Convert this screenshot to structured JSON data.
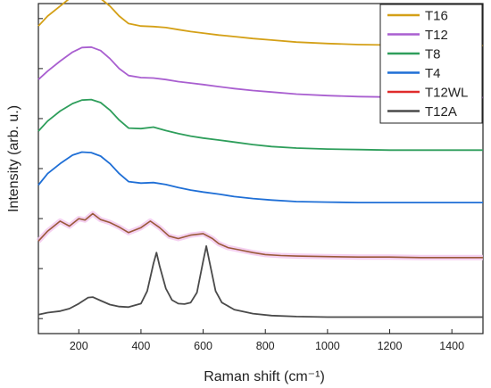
{
  "chart_data": {
    "type": "line",
    "xlabel": "Raman shift (cm⁻¹)",
    "ylabel": "Intensity (arb. u.)",
    "xlim": [
      70,
      1500
    ],
    "x_ticks": [
      200,
      400,
      600,
      800,
      1000,
      1200,
      1400
    ],
    "y_ticks": [
      0,
      1,
      2,
      3,
      4,
      5,
      6
    ],
    "ylim": [
      -0.3,
      6.3
    ],
    "y_scale": "arbitrary (stacked offsets)",
    "grid": false,
    "legend_position": "top-right",
    "series": [
      {
        "name": "T16",
        "color": "#D4A017",
        "x": [
          70,
          100,
          140,
          180,
          210,
          240,
          270,
          300,
          330,
          360,
          400,
          440,
          480,
          520,
          560,
          600,
          650,
          700,
          760,
          820,
          900,
          1000,
          1100,
          1200,
          1300,
          1400,
          1500
        ],
        "y": [
          5.85,
          6.05,
          6.25,
          6.45,
          6.5,
          6.48,
          6.4,
          6.25,
          6.05,
          5.9,
          5.85,
          5.84,
          5.82,
          5.78,
          5.74,
          5.71,
          5.67,
          5.64,
          5.6,
          5.57,
          5.53,
          5.5,
          5.48,
          5.47,
          5.46,
          5.46,
          5.46
        ]
      },
      {
        "name": "T12",
        "color": "#A95FD0",
        "x": [
          70,
          100,
          140,
          180,
          210,
          240,
          270,
          300,
          330,
          360,
          400,
          440,
          480,
          520,
          560,
          600,
          650,
          700,
          760,
          820,
          900,
          1000,
          1100,
          1200,
          1300,
          1400,
          1500
        ],
        "y": [
          4.78,
          4.95,
          5.15,
          5.33,
          5.42,
          5.43,
          5.36,
          5.2,
          5.0,
          4.86,
          4.82,
          4.81,
          4.78,
          4.74,
          4.71,
          4.68,
          4.64,
          4.6,
          4.56,
          4.53,
          4.49,
          4.46,
          4.44,
          4.43,
          4.42,
          4.42,
          4.42
        ]
      },
      {
        "name": "T8",
        "color": "#2E9E5B",
        "x": [
          70,
          100,
          140,
          180,
          210,
          240,
          270,
          300,
          330,
          360,
          400,
          440,
          480,
          520,
          560,
          600,
          650,
          700,
          760,
          820,
          900,
          1000,
          1100,
          1200,
          1300,
          1400,
          1500
        ],
        "y": [
          3.75,
          3.95,
          4.15,
          4.3,
          4.37,
          4.38,
          4.32,
          4.17,
          3.97,
          3.81,
          3.8,
          3.83,
          3.76,
          3.7,
          3.65,
          3.61,
          3.57,
          3.53,
          3.48,
          3.44,
          3.41,
          3.39,
          3.38,
          3.37,
          3.37,
          3.37,
          3.37
        ]
      },
      {
        "name": "T4",
        "color": "#1F6FD6",
        "x": [
          70,
          100,
          140,
          180,
          210,
          240,
          270,
          300,
          330,
          360,
          400,
          440,
          480,
          520,
          560,
          600,
          650,
          700,
          760,
          820,
          900,
          1000,
          1100,
          1200,
          1300,
          1400,
          1500
        ],
        "y": [
          2.67,
          2.9,
          3.1,
          3.27,
          3.33,
          3.32,
          3.25,
          3.1,
          2.9,
          2.74,
          2.71,
          2.72,
          2.68,
          2.62,
          2.57,
          2.53,
          2.49,
          2.44,
          2.4,
          2.37,
          2.34,
          2.33,
          2.32,
          2.32,
          2.32,
          2.32,
          2.32
        ]
      },
      {
        "name": "T12WL",
        "color": "#E02B2B",
        "x": [
          70,
          100,
          140,
          170,
          200,
          220,
          245,
          270,
          300,
          330,
          360,
          400,
          430,
          460,
          490,
          520,
          560,
          600,
          630,
          650,
          680,
          720,
          760,
          800,
          850,
          900,
          1000,
          1100,
          1200,
          1300,
          1400,
          1500
        ],
        "y": [
          1.55,
          1.75,
          1.95,
          1.85,
          2.0,
          1.97,
          2.1,
          1.98,
          1.92,
          1.83,
          1.72,
          1.82,
          1.95,
          1.82,
          1.65,
          1.6,
          1.67,
          1.7,
          1.6,
          1.5,
          1.42,
          1.37,
          1.32,
          1.28,
          1.26,
          1.25,
          1.24,
          1.23,
          1.23,
          1.22,
          1.22,
          1.22
        ]
      },
      {
        "name": "T12A",
        "color": "#4A4A4A",
        "x": [
          70,
          100,
          140,
          170,
          200,
          230,
          245,
          270,
          300,
          330,
          360,
          400,
          420,
          440,
          450,
          460,
          480,
          500,
          520,
          540,
          560,
          580,
          600,
          610,
          620,
          640,
          660,
          700,
          760,
          820,
          900,
          1000,
          1100,
          1200,
          1300,
          1400,
          1500
        ],
        "y": [
          0.08,
          0.12,
          0.15,
          0.2,
          0.3,
          0.42,
          0.43,
          0.36,
          0.28,
          0.24,
          0.23,
          0.3,
          0.55,
          1.1,
          1.32,
          1.05,
          0.6,
          0.37,
          0.3,
          0.29,
          0.32,
          0.52,
          1.15,
          1.45,
          1.15,
          0.55,
          0.32,
          0.18,
          0.1,
          0.06,
          0.04,
          0.03,
          0.03,
          0.03,
          0.03,
          0.03,
          0.03
        ]
      }
    ]
  }
}
